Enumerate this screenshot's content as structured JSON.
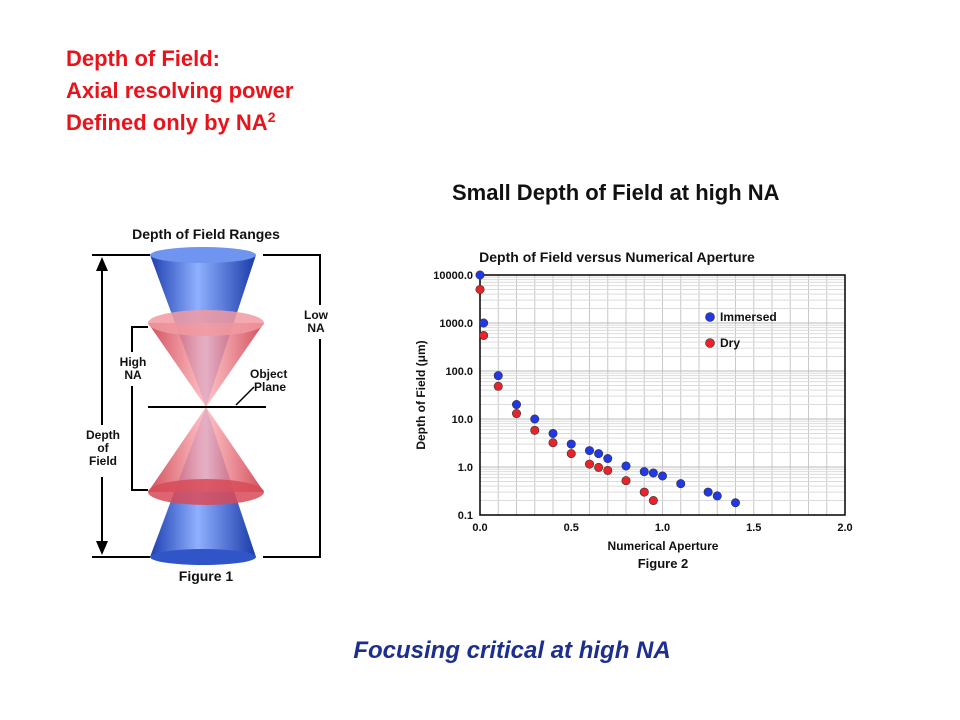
{
  "heading": {
    "line1": "Depth of Field:",
    "line2": "Axial resolving power",
    "line3": "Defined only by NA",
    "superscript": "2",
    "color": "#e8141c"
  },
  "subtitle": "Small Depth of Field at high NA",
  "footer": "Focusing critical at high NA",
  "figure1": {
    "title": "Depth of Field Ranges",
    "caption": "Figure 1",
    "labels": {
      "low_na_1": "Low",
      "low_na_2": "NA",
      "high_na_1": "High",
      "high_na_2": "NA",
      "object_1": "Object",
      "object_2": "Plane",
      "dof_1": "Depth",
      "dof_2": "of",
      "dof_3": "Field"
    },
    "colors": {
      "low_na_cone": "#3a6fe0",
      "high_na_cone": "#e8636e"
    }
  },
  "chart_data": {
    "type": "scatter",
    "title": "Depth of Field versus Numerical Aperture",
    "xlabel": "Numerical Aperture",
    "ylabel": "Depth of Field (μm)",
    "caption": "Figure 2",
    "xlim": [
      0.0,
      2.0
    ],
    "ylim": [
      0.1,
      10000.0
    ],
    "yscale": "log",
    "xticks": [
      "0.0",
      "0.5",
      "1.0",
      "1.5",
      "2.0"
    ],
    "yticks": [
      "10000.0",
      "1000.0",
      "100.0",
      "10.0",
      "1.0",
      "0.1"
    ],
    "grid": true,
    "legend_position": "top-right",
    "series": [
      {
        "name": "Immersed",
        "color": "#2238e6",
        "points": [
          [
            0.0,
            10000.0
          ],
          [
            0.02,
            1000.0
          ],
          [
            0.1,
            80.0
          ],
          [
            0.2,
            20.0
          ],
          [
            0.3,
            10.0
          ],
          [
            0.4,
            5.0
          ],
          [
            0.5,
            3.0
          ],
          [
            0.6,
            2.2
          ],
          [
            0.65,
            1.9
          ],
          [
            0.7,
            1.5
          ],
          [
            0.8,
            1.05
          ],
          [
            0.9,
            0.8
          ],
          [
            0.95,
            0.75
          ],
          [
            1.0,
            0.65
          ],
          [
            1.1,
            0.45
          ],
          [
            1.25,
            0.3
          ],
          [
            1.3,
            0.25
          ],
          [
            1.4,
            0.18
          ]
        ]
      },
      {
        "name": "Dry",
        "color": "#e8242a",
        "points": [
          [
            0.0,
            5000.0
          ],
          [
            0.02,
            550.0
          ],
          [
            0.1,
            48.0
          ],
          [
            0.2,
            13.0
          ],
          [
            0.3,
            5.8
          ],
          [
            0.4,
            3.2
          ],
          [
            0.5,
            1.9
          ],
          [
            0.6,
            1.15
          ],
          [
            0.65,
            0.98
          ],
          [
            0.7,
            0.85
          ],
          [
            0.8,
            0.52
          ],
          [
            0.9,
            0.3
          ],
          [
            0.95,
            0.2
          ]
        ]
      }
    ]
  }
}
